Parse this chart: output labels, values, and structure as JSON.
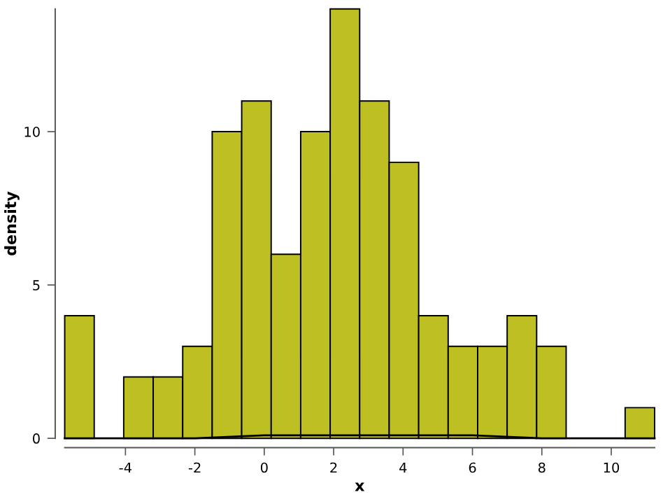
{
  "chart_data": {
    "type": "histogram",
    "xlabel": "x",
    "ylabel": "density",
    "bins": [
      -5.75,
      -4.9,
      -4.05,
      -3.2,
      -2.35,
      -1.5,
      -0.65,
      0.2,
      1.05,
      1.9,
      2.75,
      3.6,
      4.45,
      5.3,
      6.15,
      7.0,
      7.85,
      8.7,
      9.55,
      10.4,
      11.25
    ],
    "series": [
      {
        "color": "#bdbf22",
        "values": [
          4,
          0,
          2,
          2,
          3,
          10,
          11,
          6,
          10,
          14,
          11,
          9,
          4,
          3,
          3,
          4,
          3,
          0,
          0,
          1
        ]
      },
      {
        "type": "line",
        "color": "#000000",
        "x": [
          -5.75,
          -4,
          -2,
          0,
          2,
          4,
          6,
          8,
          10,
          11.25
        ],
        "values": [
          0,
          0.0,
          0.0,
          0.1,
          0.1,
          0.1,
          0.1,
          0.0,
          0.0,
          0
        ]
      }
    ],
    "xlim": [
      -5.75,
      11.25
    ],
    "ylim": [
      0,
      14
    ],
    "xticks": [
      -4,
      -2,
      0,
      2,
      4,
      6,
      8,
      10
    ],
    "yticks": [
      0,
      5,
      10
    ],
    "grid": false,
    "legend": false
  }
}
